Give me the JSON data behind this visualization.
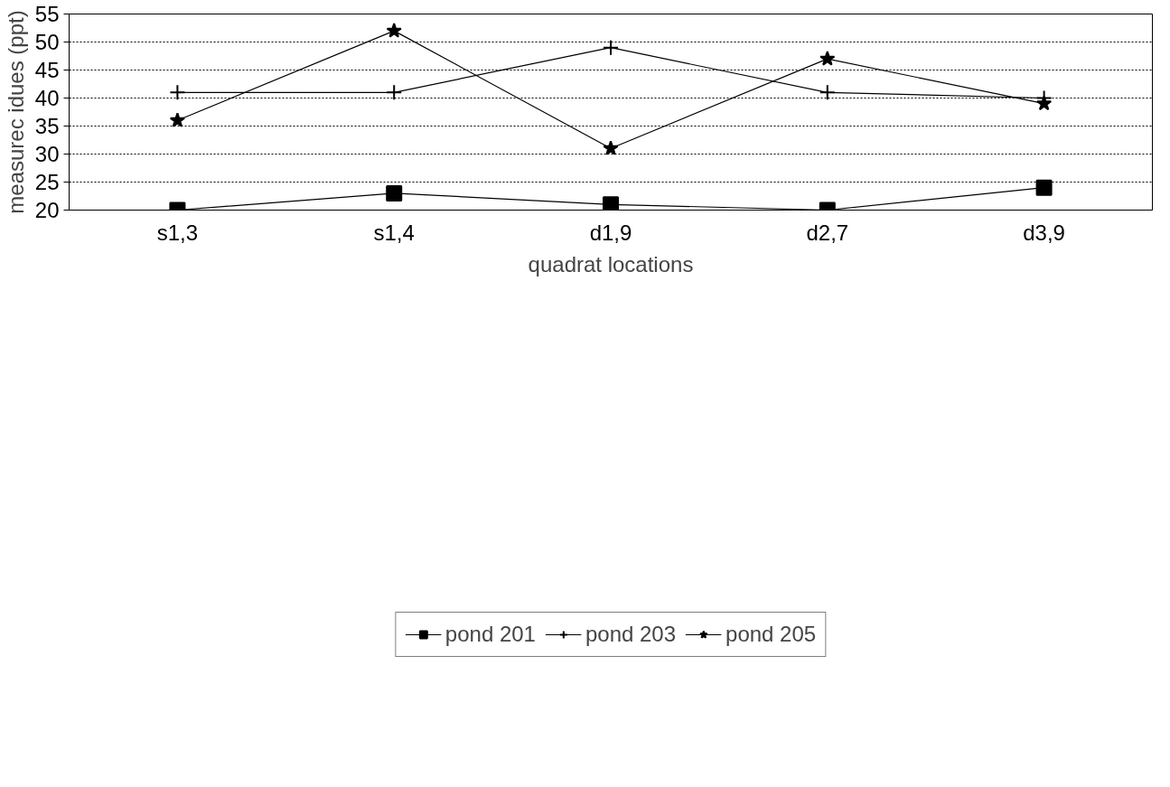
{
  "chart_data": {
    "type": "line",
    "xlabel": "quadrat locations",
    "ylabel": "measurec idues (ppt)",
    "categories": [
      "s1,3",
      "s1,4",
      "d1,9",
      "d2,7",
      "d3,9"
    ],
    "series": [
      {
        "name": "pond 201",
        "color": "#000000",
        "marker": "square",
        "values": [
          20,
          23,
          21,
          20,
          24
        ]
      },
      {
        "name": "pond 203",
        "color": "#000000",
        "marker": "cross",
        "values": [
          41,
          41,
          49,
          41,
          40
        ]
      },
      {
        "name": "pond 205",
        "color": "#000000",
        "marker": "star",
        "values": [
          36,
          52,
          31,
          47,
          39
        ]
      }
    ],
    "ylim": [
      20,
      55
    ],
    "yticks": [
      20,
      25,
      30,
      35,
      40,
      45,
      50,
      55
    ],
    "grid": "y",
    "legend": "bottom",
    "line_style": "solid"
  }
}
